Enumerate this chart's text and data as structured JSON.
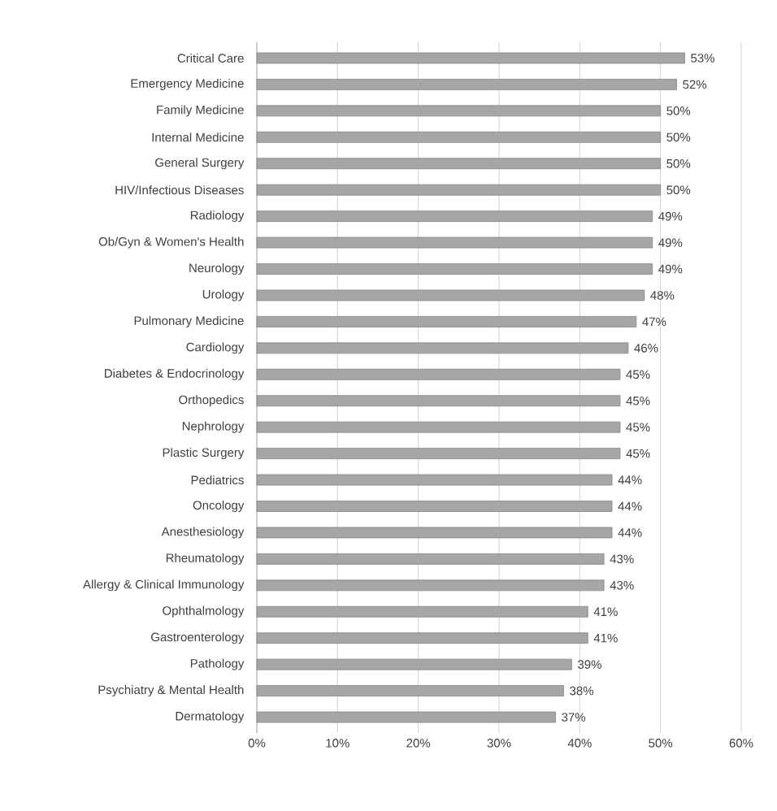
{
  "chart_data": {
    "type": "bar",
    "orientation": "horizontal",
    "categories": [
      "Critical Care",
      "Emergency Medicine",
      "Family Medicine",
      "Internal Medicine",
      "General Surgery",
      "HIV/Infectious Diseases",
      "Radiology",
      "Ob/Gyn & Women's Health",
      "Neurology",
      "Urology",
      "Pulmonary Medicine",
      "Cardiology",
      "Diabetes & Endocrinology",
      "Orthopedics",
      "Nephrology",
      "Plastic Surgery",
      "Pediatrics",
      "Oncology",
      "Anesthesiology",
      "Rheumatology",
      "Allergy & Clinical Immunology",
      "Ophthalmology",
      "Gastroenterology",
      "Pathology",
      "Psychiatry & Mental Health",
      "Dermatology"
    ],
    "values": [
      53,
      52,
      50,
      50,
      50,
      50,
      49,
      49,
      49,
      48,
      47,
      46,
      45,
      45,
      45,
      45,
      44,
      44,
      44,
      43,
      43,
      41,
      41,
      39,
      38,
      37
    ],
    "value_labels": [
      "53%",
      "52%",
      "50%",
      "50%",
      "50%",
      "50%",
      "49%",
      "49%",
      "49%",
      "48%",
      "47%",
      "46%",
      "45%",
      "45%",
      "45%",
      "45%",
      "44%",
      "44%",
      "44%",
      "43%",
      "43%",
      "41%",
      "41%",
      "39%",
      "38%",
      "37%"
    ],
    "color": "#a6a6a6",
    "xlim": [
      0,
      60
    ],
    "xticks": [
      {
        "value": 0,
        "label": "0%"
      },
      {
        "value": 10,
        "label": "10%"
      },
      {
        "value": 20,
        "label": "20%"
      },
      {
        "value": 30,
        "label": "30%"
      },
      {
        "value": 40,
        "label": "40%"
      },
      {
        "value": 50,
        "label": "50%"
      },
      {
        "value": 60,
        "label": "60%"
      }
    ],
    "grid": "x"
  }
}
